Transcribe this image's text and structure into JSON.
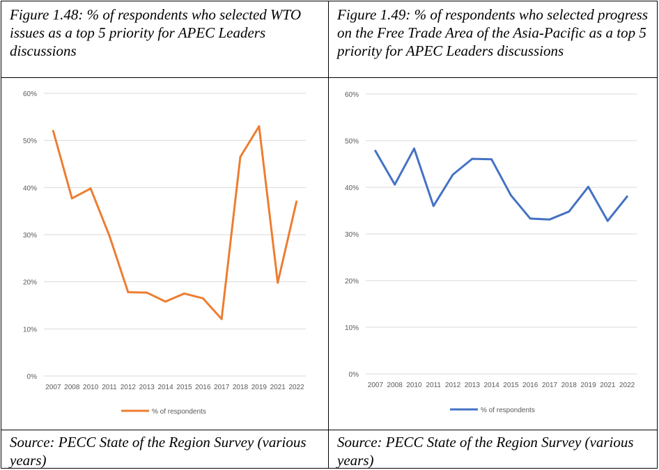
{
  "figures": [
    {
      "caption": "Figure 1.48: % of respondents who selected WTO issues as a top 5 priority for APEC Leaders discussions",
      "source": "Source: PECC State of the Region Survey (various years)"
    },
    {
      "caption": "Figure 1.49: % of respondents who selected progress on the Free Trade Area of the Asia-Pacific as a top 5 priority for APEC Leaders discussions",
      "source": "Source: PECC State of the Region Survey (various years)"
    }
  ],
  "chart_data": [
    {
      "type": "line",
      "categories": [
        "2007",
        "2008",
        "2010",
        "2011",
        "2012",
        "2013",
        "2014",
        "2015",
        "2016",
        "2017",
        "2018",
        "2019",
        "2021",
        "2022"
      ],
      "series": [
        {
          "name": "% of respondents",
          "color": "#ED7D31",
          "values": [
            52,
            37.7,
            39.8,
            29.8,
            17.8,
            17.7,
            15.8,
            17.5,
            16.5,
            12.1,
            46.5,
            53,
            19.8,
            37
          ]
        }
      ],
      "yticks": [
        "0%",
        "10%",
        "20%",
        "30%",
        "40%",
        "50%",
        "60%"
      ],
      "ylim": [
        0,
        60
      ],
      "grid": true,
      "legend": "bottom"
    },
    {
      "type": "line",
      "categories": [
        "2007",
        "2008",
        "2010",
        "2011",
        "2012",
        "2013",
        "2014",
        "2015",
        "2016",
        "2017",
        "2018",
        "2019",
        "2021",
        "2022"
      ],
      "series": [
        {
          "name": "% of respondents",
          "color": "#4472C4",
          "values": [
            47.8,
            40.6,
            48.3,
            36,
            42.7,
            46.1,
            46,
            38.3,
            33.3,
            33.1,
            34.8,
            40.1,
            32.8,
            38
          ]
        }
      ],
      "yticks": [
        "0%",
        "10%",
        "20%",
        "30%",
        "40%",
        "50%",
        "60%"
      ],
      "ylim": [
        0,
        60
      ],
      "grid": true,
      "legend": "bottom"
    }
  ]
}
